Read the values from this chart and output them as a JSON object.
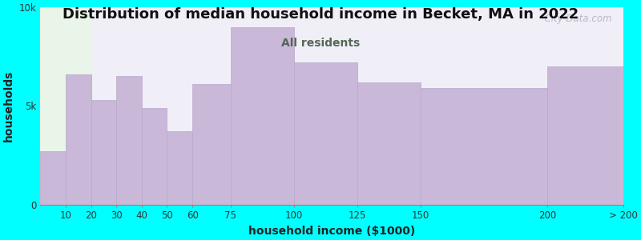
{
  "title": "Distribution of median household income in Becket, MA in 2022",
  "subtitle": "All residents",
  "xlabel": "household income ($1000)",
  "ylabel": "households",
  "background_outer": "#00FFFF",
  "background_inner_left": "#e8f5e8",
  "background_inner_right": "#f0eff8",
  "bar_color": "#c9b8d8",
  "bar_edge_color": "#b8a8cc",
  "subtitle_color": "#556655",
  "title_color": "#111111",
  "watermark_text": "  City-Data.com",
  "watermark_color": "#b0b0c0",
  "ytick_labels": [
    "0",
    "5k",
    "10k"
  ],
  "ylim": [
    0,
    10000
  ],
  "bin_edges": [
    0,
    10,
    20,
    30,
    40,
    50,
    60,
    75,
    100,
    125,
    150,
    200,
    230
  ],
  "bin_labels": [
    "10",
    "20",
    "30",
    "40",
    "50",
    "60",
    "75",
    "100",
    "125",
    "150",
    "200",
    "> 200"
  ],
  "values": [
    2700,
    6600,
    5300,
    6500,
    4900,
    3700,
    6100,
    9000,
    7200,
    6200,
    5900,
    7000
  ],
  "title_fontsize": 13,
  "subtitle_fontsize": 10,
  "axis_label_fontsize": 10
}
